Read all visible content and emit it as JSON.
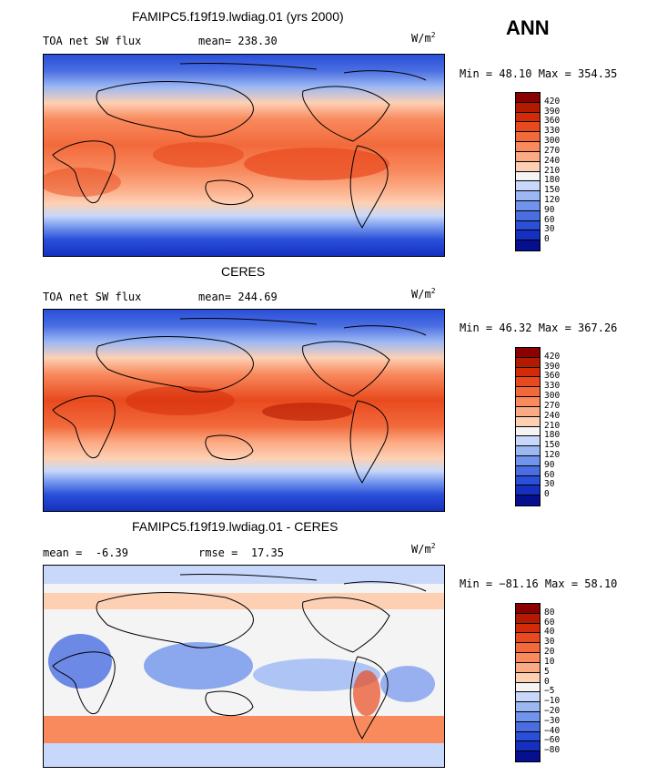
{
  "season": "ANN",
  "panels": [
    {
      "title": "FAMIPC5.f19f19.lwdiag.01 (yrs 2000)",
      "variable": "TOA net SW flux",
      "stat_label": "mean=",
      "stat_value": "238.30",
      "units": "W/m",
      "units_sup": "2",
      "minmax": "Min =  48.10 Max = 354.35",
      "colorbar": {
        "ticks": [
          "420",
          "390",
          "360",
          "330",
          "300",
          "270",
          "240",
          "210",
          "180",
          "150",
          "120",
          "90",
          "60",
          "30",
          "0"
        ],
        "colors": [
          "#8b0000",
          "#b41a00",
          "#d32a08",
          "#e84a1e",
          "#f26a3c",
          "#f88a5e",
          "#fcaa84",
          "#fdd0b4",
          "#f4f4f4",
          "#c8d8fa",
          "#9cb8f4",
          "#7093ec",
          "#4a6ee2",
          "#2a4fd8",
          "#1530c0",
          "#050f90"
        ]
      }
    },
    {
      "title": "CERES",
      "variable": "TOA net SW flux",
      "stat_label": "mean=",
      "stat_value": "244.69",
      "units": "W/m",
      "units_sup": "2",
      "minmax": "Min =  46.32 Max = 367.26",
      "colorbar": {
        "ticks": [
          "420",
          "390",
          "360",
          "330",
          "300",
          "270",
          "240",
          "210",
          "180",
          "150",
          "120",
          "90",
          "60",
          "30",
          "0"
        ],
        "colors": [
          "#8b0000",
          "#b41a00",
          "#d32a08",
          "#e84a1e",
          "#f26a3c",
          "#f88a5e",
          "#fcaa84",
          "#fdd0b4",
          "#f4f4f4",
          "#c8d8fa",
          "#9cb8f4",
          "#7093ec",
          "#4a6ee2",
          "#2a4fd8",
          "#1530c0",
          "#050f90"
        ]
      }
    },
    {
      "title": "FAMIPC5.f19f19.lwdiag.01 - CERES",
      "stat_label": "mean =",
      "stat_value": "-6.39",
      "stat2_label": "rmse =",
      "stat2_value": "17.35",
      "units": "W/m",
      "units_sup": "2",
      "minmax": "Min = −81.16 Max =  58.10",
      "colorbar": {
        "ticks": [
          "80",
          "60",
          "40",
          "30",
          "20",
          "10",
          "5",
          "0",
          "−5",
          "−10",
          "−20",
          "−30",
          "−40",
          "−60",
          "−80"
        ],
        "colors": [
          "#8b0000",
          "#b41a00",
          "#d32a08",
          "#e84a1e",
          "#f26a3c",
          "#f88a5e",
          "#fcaa84",
          "#fdd0b4",
          "#f4f4f4",
          "#c8d8fa",
          "#9cb8f4",
          "#7093ec",
          "#4a6ee2",
          "#2a4fd8",
          "#1530c0",
          "#050f90"
        ]
      }
    }
  ]
}
